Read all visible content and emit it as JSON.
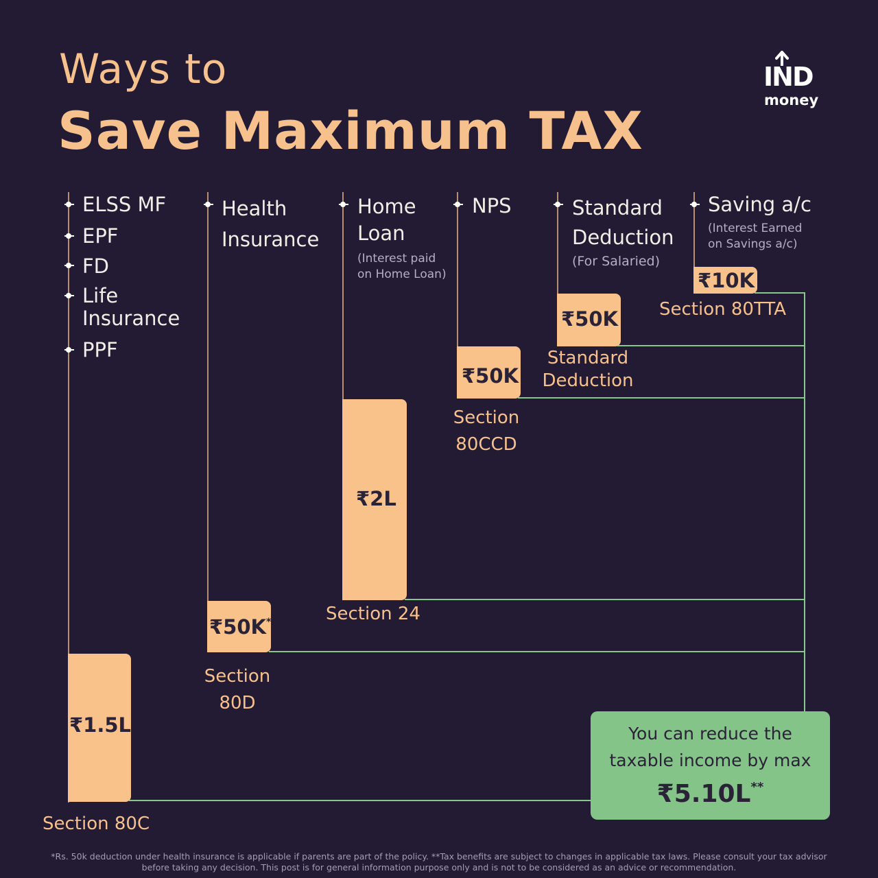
{
  "header": {
    "title_line1": "Ways to",
    "title_line2": "Save Maximum TAX"
  },
  "logo": {
    "name": "IND money",
    "mark_text": "IND",
    "sub_text": "money",
    "icon": "up-arrow-icon"
  },
  "columns": [
    {
      "items": [
        "ELSS MF",
        "EPF",
        "FD",
        "Life Insurance",
        "PPF"
      ],
      "note": ""
    },
    {
      "items": [
        "Health Insurance"
      ],
      "note": ""
    },
    {
      "items": [
        "Home Loan"
      ],
      "note": "(Interest paid on Home Loan)"
    },
    {
      "items": [
        "NPS"
      ],
      "note": ""
    },
    {
      "items": [
        "Standard Deduction"
      ],
      "note": "(For Salaried)"
    },
    {
      "items": [
        "Saving a/c"
      ],
      "note": "(Interest Earned on Savings a/c)"
    }
  ],
  "result": {
    "line1": "You can reduce the",
    "line2": "taxable income by max",
    "total": "₹5.10L",
    "total_mark": "**"
  },
  "disclaimer": "*Rs. 50k deduction under health insurance is applicable if parents are part of the policy. **Tax benefits are subject to changes in applicable tax laws. Please consult your tax advisor before taking any decision. This post is for general information purpose only and is not to be considered as an advice or recommendation.",
  "colors": {
    "background": "#231b33",
    "accent": "#f7c18d",
    "bar": "#f9c28b",
    "connector": "#86c98a",
    "result_box": "#84c489",
    "stem": "#b58f72"
  },
  "chart_data": {
    "type": "bar",
    "title": "Ways to Save Maximum TAX",
    "unit": "₹",
    "categories": [
      "Section 80C",
      "Section 80D",
      "Section 24",
      "Section 80CCD",
      "Standard Deduction",
      "Section 80TTA"
    ],
    "values": [
      150000,
      50000,
      200000,
      50000,
      50000,
      10000
    ],
    "value_labels": [
      "₹1.5L",
      "₹50K",
      "₹2L",
      "₹50K",
      "₹50K",
      "₹10K"
    ],
    "value_marks": [
      "",
      "*",
      "",
      "",
      "",
      ""
    ],
    "total": 510000,
    "total_label": "₹5.10L"
  }
}
